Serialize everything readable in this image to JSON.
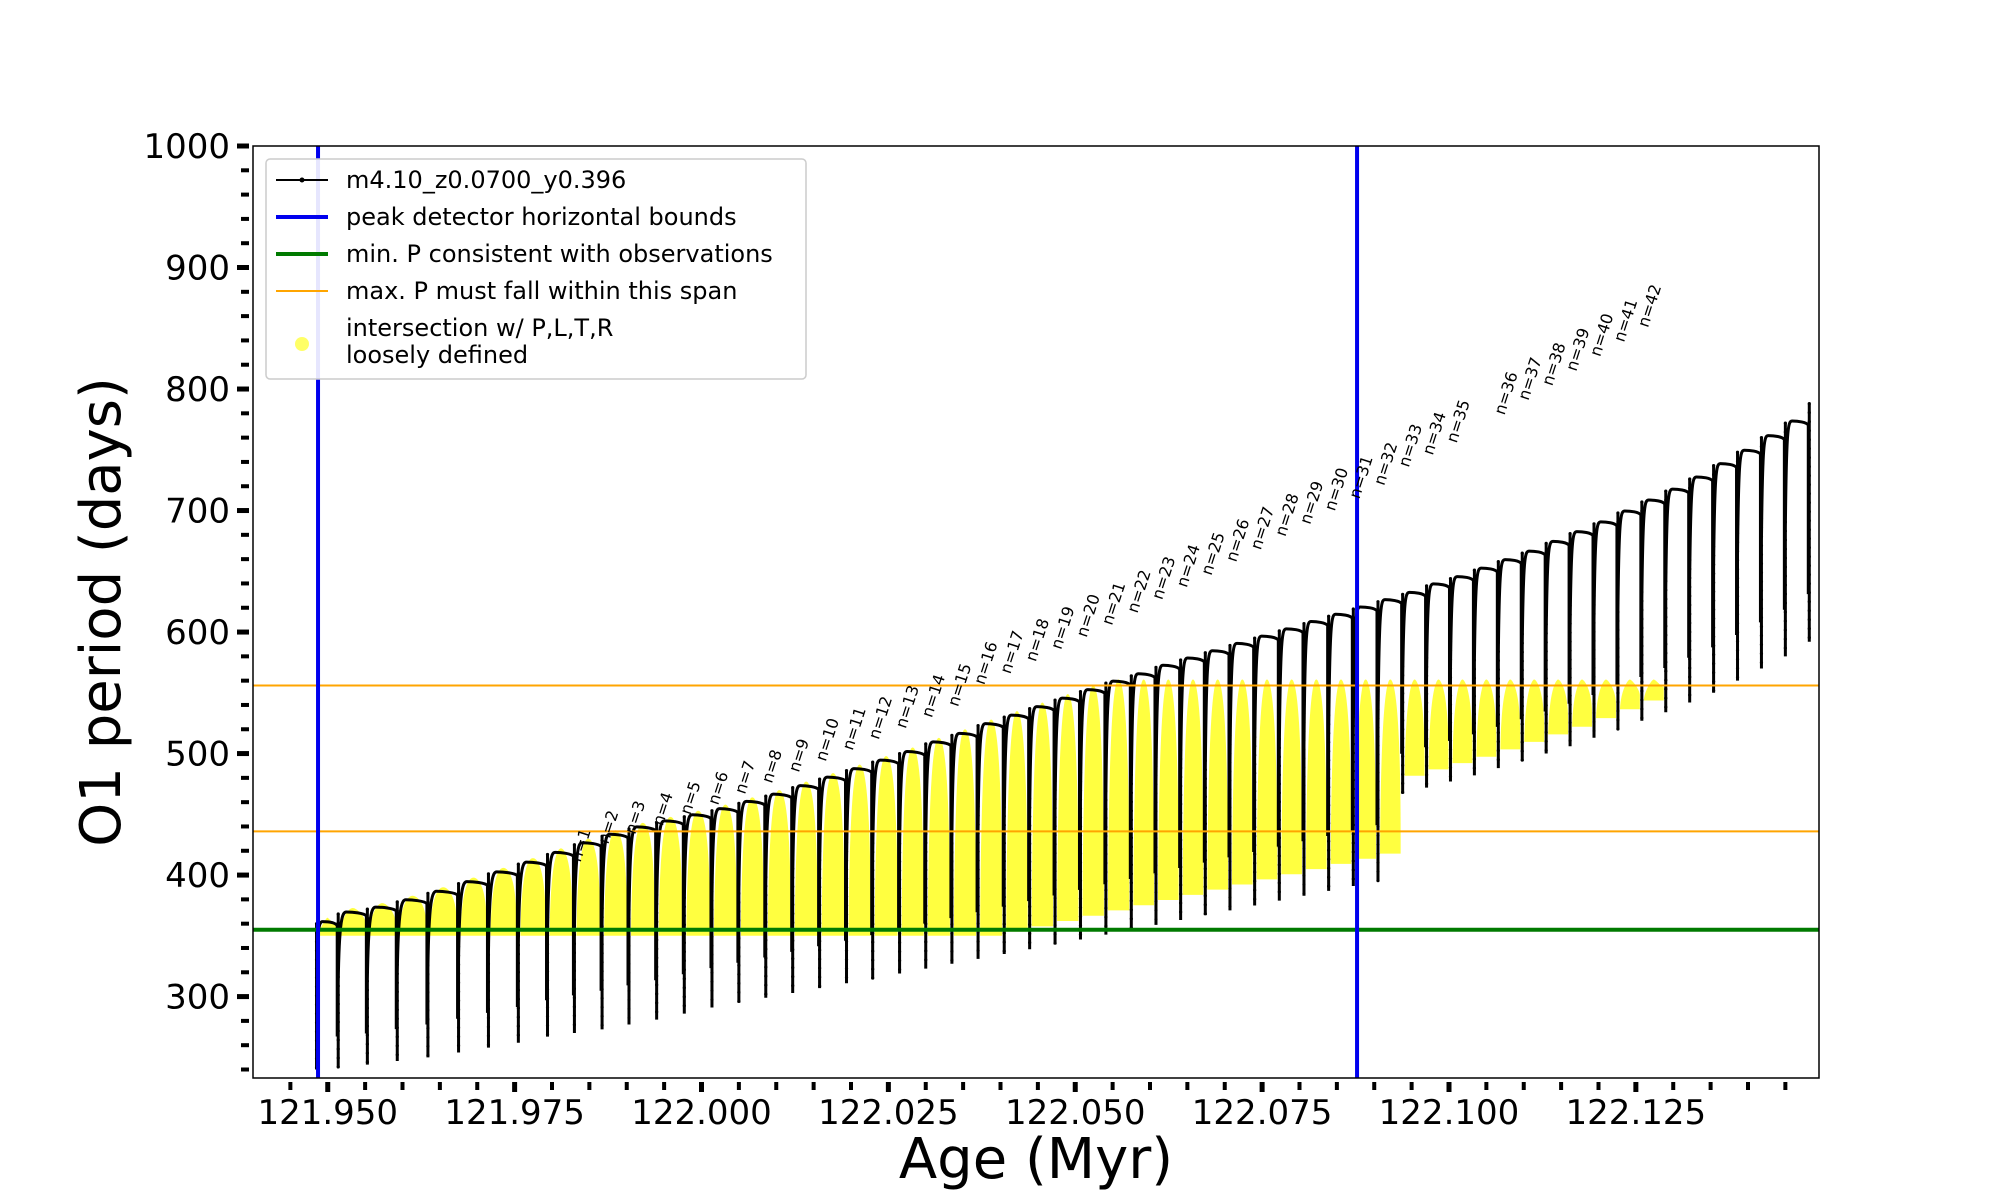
{
  "chart_data": {
    "type": "scatter",
    "title": "",
    "xlabel": "Age (Myr)",
    "ylabel": "O1 period (days)",
    "xlim": [
      121.94,
      122.1495
    ],
    "ylim": [
      233,
      1000
    ],
    "x_ticks": [
      121.95,
      121.975,
      122.0,
      122.025,
      122.05,
      122.075,
      122.1,
      122.125
    ],
    "x_tick_labels": [
      "121.950",
      "121.975",
      "122.000",
      "122.025",
      "122.050",
      "122.075",
      "122.100",
      "122.125"
    ],
    "y_ticks": [
      300,
      400,
      500,
      600,
      700,
      800,
      900,
      1000
    ],
    "y_tick_labels": [
      "300",
      "400",
      "500",
      "600",
      "700",
      "800",
      "900",
      "1000"
    ],
    "grid": false,
    "legend_position": "top-left",
    "legend": [
      {
        "label": "m4.10_z0.0700_y0.396",
        "color": "#000000",
        "style": "line-marker"
      },
      {
        "label": "peak detector horizontal bounds",
        "color": "#0000ee",
        "style": "line"
      },
      {
        "label": "min. P consistent with observations",
        "color": "#007a00",
        "style": "line"
      },
      {
        "label": "max. P must fall within this span",
        "color": "#ffa500",
        "style": "line"
      },
      {
        "label": "intersection w/ P,L,T,R",
        "label2": "loosely defined",
        "color": "#ffff00",
        "style": "marker"
      }
    ],
    "vertical_lines": [
      {
        "x": 121.9487,
        "color": "#0000ee",
        "series": "peak detector horizontal bounds"
      },
      {
        "x": 122.0877,
        "color": "#0000ee",
        "series": "peak detector horizontal bounds"
      }
    ],
    "horizontal_lines": [
      {
        "y": 355,
        "color": "#007a00",
        "series": "min. P consistent with observations"
      },
      {
        "y": 436,
        "color": "#ffa500",
        "series": "max. P must fall within this span"
      },
      {
        "y": 556,
        "color": "#ffa500",
        "series": "max. P must fall within this span"
      }
    ],
    "pulses": [
      {
        "x": 121.9485,
        "min": 240,
        "max": 360
      },
      {
        "x": 121.9514,
        "min": 242,
        "max": 368
      },
      {
        "x": 121.9553,
        "min": 244,
        "max": 372
      },
      {
        "x": 121.9593,
        "min": 247,
        "max": 378
      },
      {
        "x": 121.9634,
        "min": 250,
        "max": 385
      },
      {
        "x": 121.9675,
        "min": 254,
        "max": 393
      },
      {
        "x": 121.9715,
        "min": 258,
        "max": 401
      },
      {
        "x": 121.9755,
        "min": 262,
        "max": 409
      },
      {
        "x": 121.9794,
        "min": 267,
        "max": 417
      },
      {
        "x": 121.983,
        "min": 270,
        "max": 425,
        "n": "n=1",
        "label_y": 410
      },
      {
        "x": 121.9867,
        "min": 273,
        "max": 432,
        "n": "n=2",
        "label_y": 425
      },
      {
        "x": 121.9903,
        "min": 277,
        "max": 438,
        "n": "n=3",
        "label_y": 433
      },
      {
        "x": 121.994,
        "min": 281,
        "max": 443,
        "n": "n=4",
        "label_y": 440
      },
      {
        "x": 121.9977,
        "min": 286,
        "max": 448,
        "n": "n=5",
        "label_y": 449
      },
      {
        "x": 122.0014,
        "min": 291,
        "max": 453,
        "n": "n=6",
        "label_y": 457
      },
      {
        "x": 122.005,
        "min": 295,
        "max": 459,
        "n": "n=7",
        "label_y": 466
      },
      {
        "x": 122.0086,
        "min": 299,
        "max": 465,
        "n": "n=8",
        "label_y": 475
      },
      {
        "x": 122.0122,
        "min": 303,
        "max": 472,
        "n": "n=9",
        "label_y": 484
      },
      {
        "x": 122.0158,
        "min": 307,
        "max": 479,
        "n": "n=10",
        "label_y": 493
      },
      {
        "x": 122.0194,
        "min": 311,
        "max": 486,
        "n": "n=11",
        "label_y": 502
      },
      {
        "x": 122.0229,
        "min": 315,
        "max": 493,
        "n": "n=12",
        "label_y": 511
      },
      {
        "x": 122.0265,
        "min": 319,
        "max": 500,
        "n": "n=13",
        "label_y": 520
      },
      {
        "x": 122.03,
        "min": 323,
        "max": 508,
        "n": "n=14",
        "label_y": 529
      },
      {
        "x": 122.0335,
        "min": 327,
        "max": 515,
        "n": "n=15",
        "label_y": 538
      },
      {
        "x": 122.037,
        "min": 331,
        "max": 523,
        "n": "n=16",
        "label_y": 556
      },
      {
        "x": 122.0405,
        "min": 335,
        "max": 530,
        "n": "n=17",
        "label_y": 565
      },
      {
        "x": 122.0439,
        "min": 339,
        "max": 537,
        "n": "n=18",
        "label_y": 575
      },
      {
        "x": 122.0473,
        "min": 343,
        "max": 544,
        "n": "n=19",
        "label_y": 585
      },
      {
        "x": 122.0507,
        "min": 347,
        "max": 551,
        "n": "n=20",
        "label_y": 595
      },
      {
        "x": 122.0541,
        "min": 351,
        "max": 558,
        "n": "n=21",
        "label_y": 605
      },
      {
        "x": 122.0575,
        "min": 355,
        "max": 564,
        "n": "n=22",
        "label_y": 615
      },
      {
        "x": 122.0608,
        "min": 359,
        "max": 571,
        "n": "n=23",
        "label_y": 626
      },
      {
        "x": 122.0641,
        "min": 363,
        "max": 577,
        "n": "n=24",
        "label_y": 636
      },
      {
        "x": 122.0674,
        "min": 367,
        "max": 583,
        "n": "n=25",
        "label_y": 646
      },
      {
        "x": 122.0707,
        "min": 371,
        "max": 589,
        "n": "n=26",
        "label_y": 657
      },
      {
        "x": 122.074,
        "min": 375,
        "max": 595,
        "n": "n=27",
        "label_y": 667
      },
      {
        "x": 122.0773,
        "min": 379,
        "max": 601,
        "n": "n=28",
        "label_y": 678
      },
      {
        "x": 122.0806,
        "min": 383,
        "max": 607,
        "n": "n=29",
        "label_y": 688
      },
      {
        "x": 122.0839,
        "min": 387,
        "max": 613,
        "n": "n=30",
        "label_y": 699
      },
      {
        "x": 122.0872,
        "min": 391,
        "max": 619,
        "n": "n=31",
        "label_y": 709
      },
      {
        "x": 122.0905,
        "min": 395,
        "max": 625,
        "n": "n=32",
        "label_y": 720
      },
      {
        "x": 122.0938,
        "min": 467,
        "max": 631,
        "n": "n=33",
        "label_y": 735
      },
      {
        "x": 122.097,
        "min": 472,
        "max": 638,
        "n": "n=34",
        "label_y": 745
      },
      {
        "x": 122.1002,
        "min": 477,
        "max": 644,
        "n": "n=35",
        "label_y": 755
      },
      {
        "x": 122.1034,
        "min": 482,
        "max": 651
      },
      {
        "x": 122.1066,
        "min": 488,
        "max": 658,
        "n": "n=36",
        "label_y": 778
      },
      {
        "x": 122.1098,
        "min": 494,
        "max": 665,
        "n": "n=37",
        "label_y": 790
      },
      {
        "x": 122.113,
        "min": 500,
        "max": 673,
        "n": "n=38",
        "label_y": 802
      },
      {
        "x": 122.1162,
        "min": 506,
        "max": 681,
        "n": "n=39",
        "label_y": 814
      },
      {
        "x": 122.1194,
        "min": 513,
        "max": 689,
        "n": "n=40",
        "label_y": 826
      },
      {
        "x": 122.1226,
        "min": 520,
        "max": 698,
        "n": "n=41",
        "label_y": 838
      },
      {
        "x": 122.1258,
        "min": 527,
        "max": 707,
        "n": "n=42",
        "label_y": 850
      },
      {
        "x": 122.129,
        "min": 534,
        "max": 716
      },
      {
        "x": 122.1322,
        "min": 542,
        "max": 726
      },
      {
        "x": 122.1354,
        "min": 550,
        "max": 737
      },
      {
        "x": 122.1386,
        "min": 560,
        "max": 748
      },
      {
        "x": 122.1418,
        "min": 570,
        "max": 760
      },
      {
        "x": 122.145,
        "min": 580,
        "max": 772
      },
      {
        "x": 122.1482,
        "min": 592,
        "max": 788
      }
    ]
  }
}
